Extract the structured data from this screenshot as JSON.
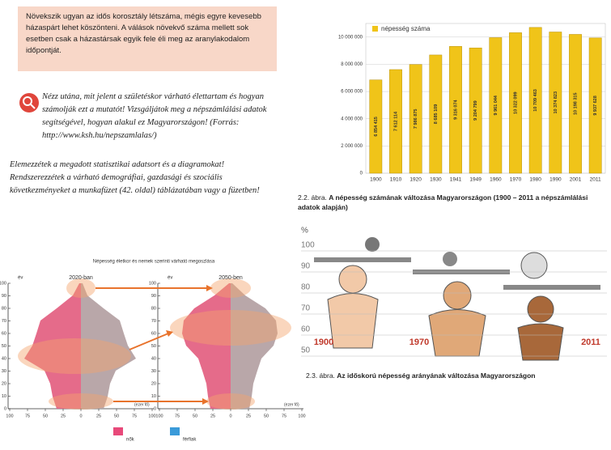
{
  "info_box": "Növekszik ugyan az idős korosztály létszáma, mégis egyre kevesebb házaspárt lehet köszönteni. A válások növekvő száma mellett sok esetben csak a házastársak egyik fele éli meg az aranylakodalom időpontját.",
  "task_1": "Nézz utána, mit jelent a születéskor várható élettartam és hogyan számolják ezt a mutatót! Vizsgáljátok meg a népszámlálási adatok segítségével, hogyan alakul ez Magyarországon! (Forrás: http://www.ksh.hu/nepszamlalas/)",
  "task_2": "Elemezzétek a megadott statisztikai adatsort és a diagramokat! Rendszerezzétek a várható demográfiai, gazdasági és szociális következményeket a munkafüzet (42. oldal) táblázatában vagy a füzetben!",
  "chart_data": {
    "type": "bar",
    "categories": [
      "1900",
      "1910",
      "1920",
      "1930",
      "1941",
      "1949",
      "1960",
      "1970",
      "1980",
      "1990",
      "2001",
      "2011"
    ],
    "series": [
      {
        "name": "népesség száma",
        "color": "#f0c419",
        "values": [
          6854415,
          7612114,
          7986875,
          8685109,
          9316074,
          9204799,
          9961044,
          10322099,
          10709463,
          10374823,
          10198315,
          9937628
        ],
        "value_labels": [
          "6 854 415",
          "7 612 114",
          "7 986 875",
          "8 685 109",
          "9 316 074",
          "9 204 799",
          "9 961 044",
          "10 322 099",
          "10 709 463",
          "10 374 823",
          "10 198 315",
          "9 937 628"
        ]
      }
    ],
    "ylim": [
      0,
      11000000
    ],
    "yticks": [
      0,
      {
        "value": 2000000,
        "label": "2 000 000"
      },
      {
        "value": 4000000,
        "label": "4 000 000"
      },
      {
        "value": 6000000,
        "label": "6 000 000"
      },
      {
        "value": 8000000,
        "label": "8 000 000"
      },
      {
        "value": 10000000,
        "label": "10 000 000"
      }
    ],
    "grid": true,
    "caption_number": "2.2. ábra.",
    "caption": "A népesség számának változása Magyarországon (1900 – 2011 a népszámlálási adatok alapján)"
  },
  "pyramid": {
    "title": "Népesség életkor és nemek szerinti várható megoszlása",
    "left_label": "2020-ban",
    "right_label": "2050-ben",
    "age_label": "év",
    "unit_label": "(ezer fő)",
    "yticks": [
      0,
      10,
      20,
      30,
      40,
      50,
      60,
      70,
      80,
      90,
      100
    ],
    "xticks": [
      100,
      75,
      50,
      25,
      0,
      25,
      50,
      75,
      100
    ],
    "legend": [
      {
        "name": "nők",
        "color": "#e8497a"
      },
      {
        "name": "férfiak",
        "color": "#3a9ad9"
      }
    ]
  },
  "cartoon": {
    "ylabel": "%",
    "yticks": [
      100,
      90,
      80,
      70,
      60,
      50
    ],
    "years": [
      "1900",
      "1970",
      "2011"
    ],
    "caption_number": "2.3. ábra.",
    "caption": "Az időskorú népesség arányának változása Magyarországon"
  }
}
